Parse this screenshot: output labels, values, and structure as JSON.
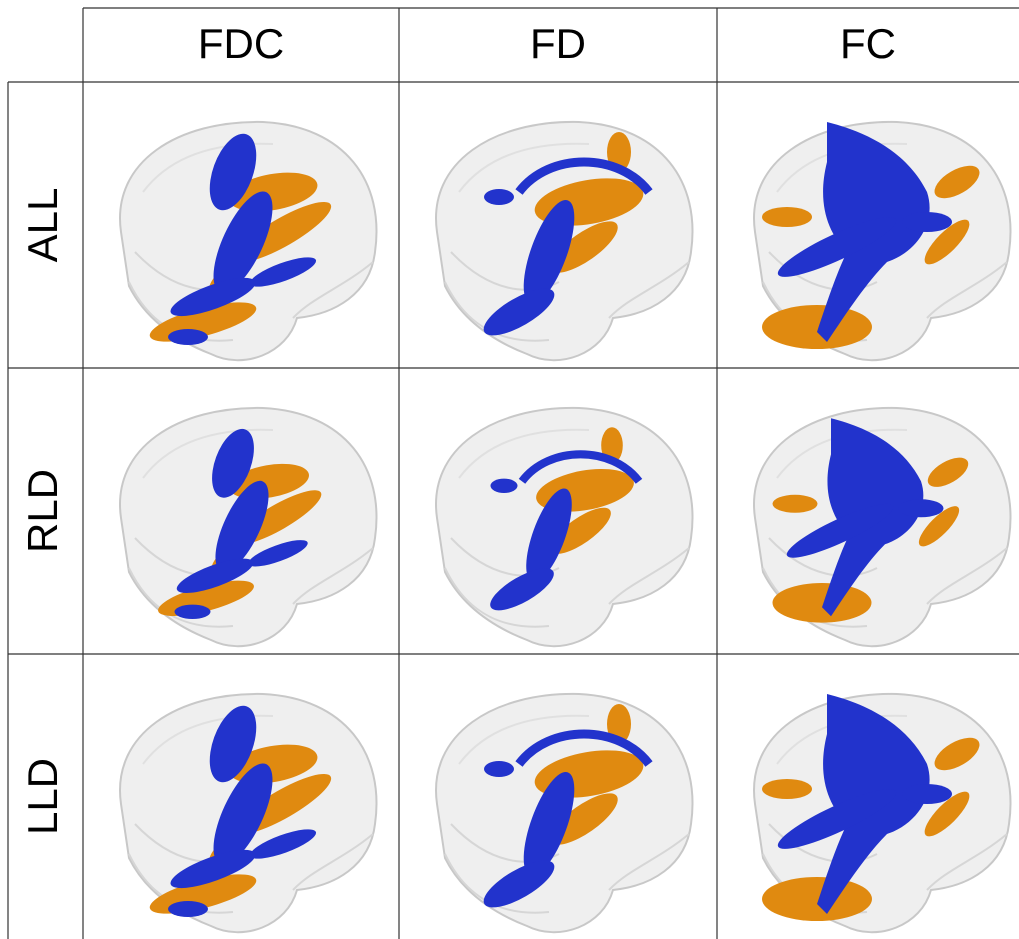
{
  "table": {
    "columns": [
      "FDC",
      "FD",
      "FC"
    ],
    "rows": [
      "ALL",
      "RLD",
      "LLD"
    ]
  }
}
